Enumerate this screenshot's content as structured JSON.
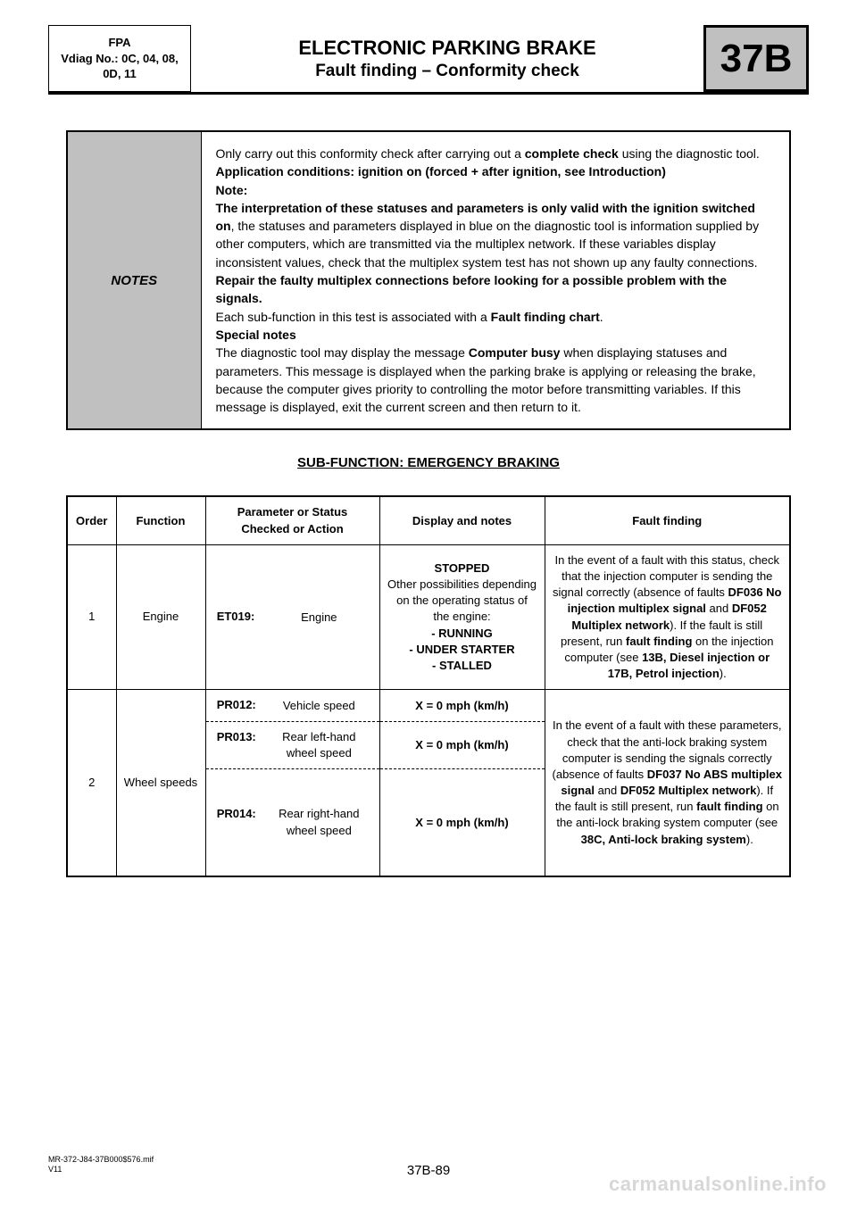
{
  "header": {
    "left_line1": "FPA",
    "left_line2": "Vdiag No.: 0C, 04, 08,",
    "left_line3": "0D, 11",
    "title": "ELECTRONIC PARKING BRAKE",
    "subtitle": "Fault finding – Conformity check",
    "badge": "37B"
  },
  "notes": {
    "label": "NOTES",
    "body_html": "Only carry out this conformity check after carrying out a <b>complete check</b> using the diagnostic tool.<br><b>Application conditions: ignition on (forced + after ignition, see Introduction)</b><br><b>Note:</b><br><b>The interpretation of these statuses and parameters is only valid with the ignition switched on</b>, the statuses and parameters displayed in blue on the diagnostic tool is information supplied by other computers, which are transmitted via the multiplex network. If these variables display inconsistent values, check that the multiplex system test has not shown up any faulty connections. <b>Repair the faulty multiplex connections before looking for a possible problem with the signals.</b><br>Each sub-function in this test is associated with a <b>Fault finding chart</b>.<br><b>Special notes</b><br>The diagnostic tool may display the message <b>Computer busy</b> when displaying statuses and parameters. This message is displayed when the parking brake is applying or releasing the brake, because the computer gives priority to controlling the motor before transmitting variables. If this message is displayed, exit the current screen and then return to it."
  },
  "subfunction": "SUB-FUNCTION: EMERGENCY BRAKING",
  "table": {
    "columns": {
      "order": "Order",
      "function": "Function",
      "param": "Parameter or Status Checked or Action",
      "display": "Display and notes",
      "fault": "Fault finding"
    },
    "row1": {
      "order": "1",
      "function": "Engine",
      "param_code": "ET019:",
      "param_desc": "Engine",
      "display_html": "<b>STOPPED</b><br>Other possibilities depending on the operating status of the engine:<br><b>- RUNNING<br>- UNDER STARTER<br>- STALLED</b>",
      "fault_html": "In the event of a fault with this status, check that the injection computer is sending the signal correctly (absence of faults <b>DF036 No injection multiplex signal</b> and <b>DF052 Multiplex network</b>). If the fault is still present, run <b>fault finding</b> on the injection computer (see <b>13B, Diesel injection or 17B, Petrol injection</b>)."
    },
    "row2": {
      "order": "2",
      "function": "Wheel speeds",
      "p1_code": "PR012:",
      "p1_desc": "Vehicle speed",
      "p1_disp": "X = 0 mph (km/h)",
      "p2_code": "PR013:",
      "p2_desc": "Rear left-hand wheel speed",
      "p2_disp": "X = 0 mph (km/h)",
      "p3_code": "PR014:",
      "p3_desc": "Rear right-hand wheel speed",
      "p3_disp": "X = 0 mph (km/h)",
      "fault_html": "In the event of a fault with these parameters, check that the anti-lock braking system computer is sending the signals correctly (absence of faults <b>DF037 No ABS multiplex signal</b> and <b>DF052 Multiplex network</b>). If the fault is still present, run <b>fault finding</b> on the anti-lock braking system computer (see <b>38C, Anti-lock braking system</b>)."
    }
  },
  "footer": {
    "doc_ref": "MR-372-J84-37B000$576.mif",
    "version": "V11",
    "page": "37B-89",
    "watermark": "carmanualsonline.info"
  }
}
